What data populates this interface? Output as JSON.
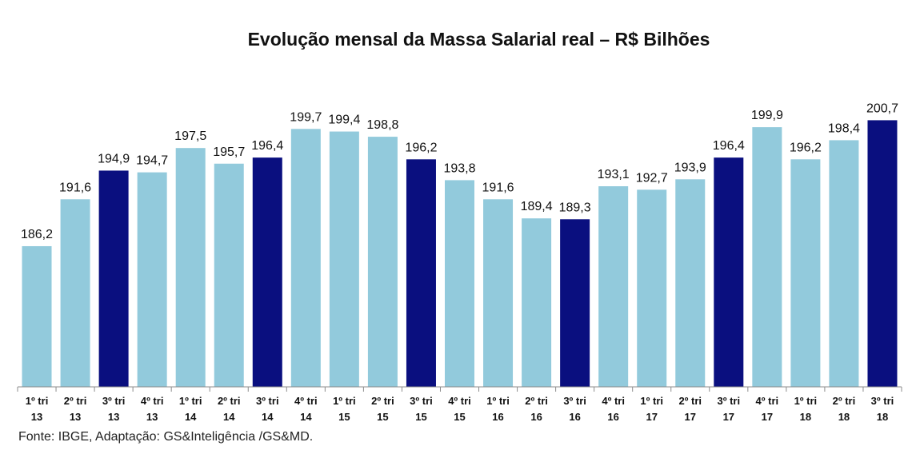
{
  "chart_data": {
    "type": "bar",
    "title": "Evolução mensal da Massa Salarial real – R$ Bilhões",
    "xlabel": "",
    "ylabel": "",
    "categories": [
      [
        "1º tri",
        "13"
      ],
      [
        "2º tri",
        "13"
      ],
      [
        "3º tri",
        "13"
      ],
      [
        "4º tri",
        "13"
      ],
      [
        "1º tri",
        "14"
      ],
      [
        "2º tri",
        "14"
      ],
      [
        "3º tri",
        "14"
      ],
      [
        "4º tri",
        "14"
      ],
      [
        "1º tri",
        "15"
      ],
      [
        "2º tri",
        "15"
      ],
      [
        "3º tri",
        "15"
      ],
      [
        "4º tri",
        "15"
      ],
      [
        "1º tri",
        "16"
      ],
      [
        "2º tri",
        "16"
      ],
      [
        "3º tri",
        "16"
      ],
      [
        "4º tri",
        "16"
      ],
      [
        "1º tri",
        "17"
      ],
      [
        "2º tri",
        "17"
      ],
      [
        "3º tri",
        "17"
      ],
      [
        "4º tri",
        "17"
      ],
      [
        "1º tri",
        "18"
      ],
      [
        "2º tri",
        "18"
      ],
      [
        "3º tri",
        "18"
      ]
    ],
    "values": [
      186.2,
      191.6,
      194.9,
      194.7,
      197.5,
      195.7,
      196.4,
      199.7,
      199.4,
      198.8,
      196.2,
      193.8,
      191.6,
      189.4,
      189.3,
      193.1,
      192.7,
      193.9,
      196.4,
      199.9,
      196.2,
      198.4,
      200.7
    ],
    "value_labels": [
      "186,2",
      "191,6",
      "194,9",
      "194,7",
      "197,5",
      "195,7",
      "196,4",
      "199,7",
      "199,4",
      "198,8",
      "196,2",
      "193,8",
      "191,6",
      "189,4",
      "189,3",
      "193,1",
      "192,7",
      "193,9",
      "196,4",
      "199,9",
      "196,2",
      "198,4",
      "200,7"
    ],
    "highlight": [
      false,
      false,
      true,
      false,
      false,
      false,
      true,
      false,
      false,
      false,
      true,
      false,
      false,
      false,
      true,
      false,
      false,
      false,
      true,
      false,
      false,
      false,
      true
    ],
    "ylim": [
      170,
      203.5
    ],
    "grid": false,
    "legend": "none",
    "colors": {
      "bar": "#92CADC",
      "highlight": "#0A0F7F",
      "axis": "#8C8C8C",
      "label": "#111111"
    }
  },
  "source": "Fonte: IBGE,  Adaptação: GS&Inteligência /GS&MD."
}
